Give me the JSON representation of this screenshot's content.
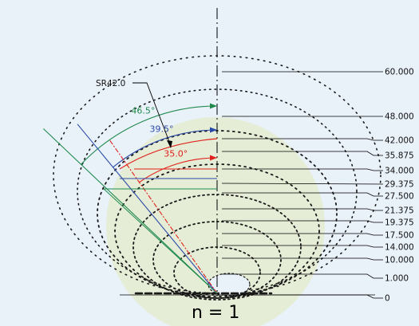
{
  "diagram": {
    "caption": "n = 1",
    "radius_label": "SR42.0",
    "angles": [
      {
        "label": "46.5°",
        "deg": 46.5,
        "color": "#1f8a4c"
      },
      {
        "label": "39.5°",
        "deg": 39.5,
        "color": "#2a4aa8"
      },
      {
        "label": "35.0°",
        "deg": 35.0,
        "color": "#e0221c"
      }
    ],
    "dimensions": [
      "60.000",
      "48.000",
      "42.000",
      "35.875",
      "34.000",
      "29.375",
      "27.500",
      "21.375",
      "19.375",
      "17.500",
      "14.000",
      "10.000",
      "1.000",
      "0"
    ],
    "colors": {
      "fill": "#e6edd6",
      "dots": "#1a1a1a",
      "line": "#000000"
    }
  }
}
